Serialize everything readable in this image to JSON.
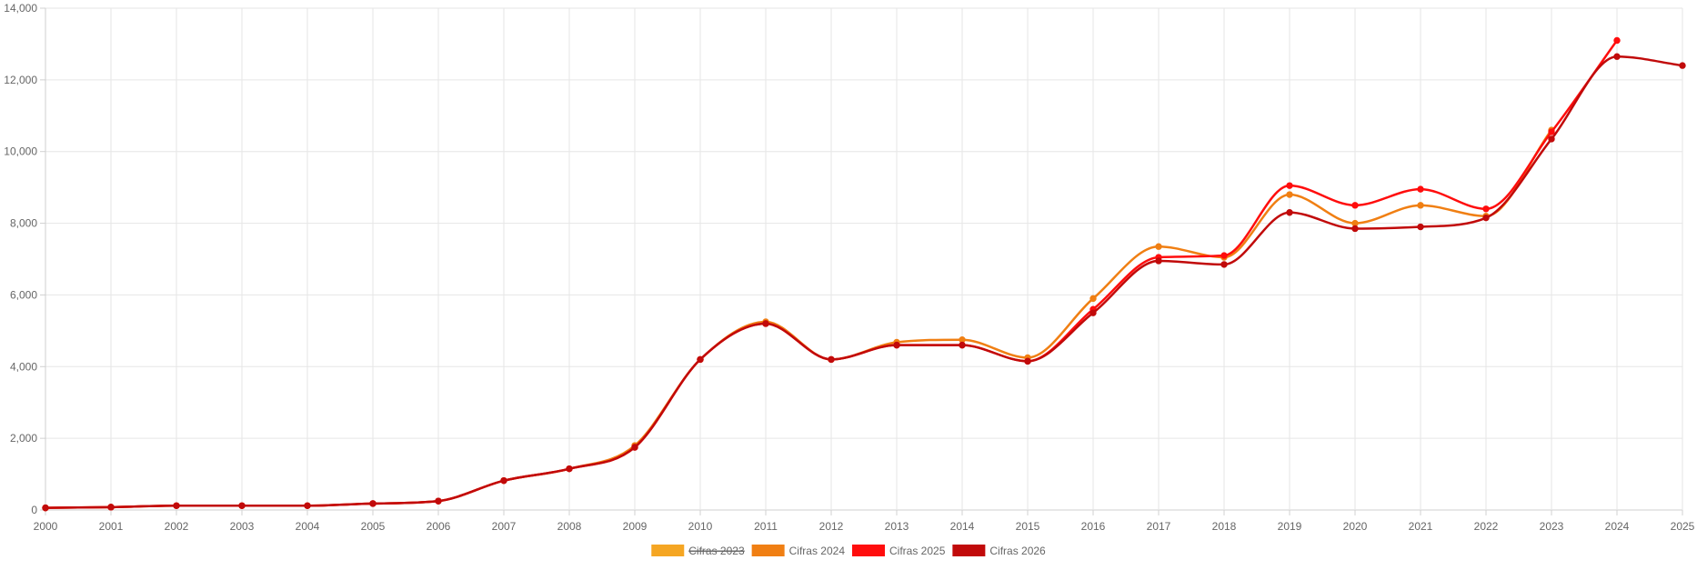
{
  "chart_data": {
    "type": "line",
    "title": "",
    "xlabel": "",
    "ylabel": "",
    "ylim": [
      0,
      14000
    ],
    "grid": true,
    "legend_position": "bottom-center",
    "y_ticks": [
      "0",
      "2,000",
      "4,000",
      "6,000",
      "8,000",
      "10,000",
      "12,000",
      "14,000"
    ],
    "y_tick_values": [
      0,
      2000,
      4000,
      6000,
      8000,
      10000,
      12000,
      14000
    ],
    "categories": [
      "2000",
      "2001",
      "2002",
      "2003",
      "2004",
      "2005",
      "2006",
      "2007",
      "2008",
      "2009",
      "2010",
      "2011",
      "2012",
      "2013",
      "2014",
      "2015",
      "2016",
      "2017",
      "2018",
      "2019",
      "2020",
      "2021",
      "2022",
      "2023",
      "2024",
      "2025"
    ],
    "series": [
      {
        "name": "Cifras 2023",
        "color": "#f5a623",
        "hidden": true,
        "values": [
          60,
          80,
          120,
          120,
          120,
          180,
          250,
          820,
          1150,
          1800,
          4200,
          5250,
          4200,
          4680,
          4750,
          4250,
          5900,
          7350,
          7050,
          8800,
          8000,
          8500,
          8200,
          10600,
          null,
          null
        ]
      },
      {
        "name": "Cifras 2024",
        "color": "#f07f13",
        "hidden": false,
        "values": [
          60,
          80,
          120,
          120,
          120,
          180,
          250,
          820,
          1150,
          1800,
          4200,
          5250,
          4200,
          4680,
          4750,
          4250,
          5900,
          7350,
          7050,
          8800,
          8000,
          8500,
          8200,
          10600,
          null,
          null
        ]
      },
      {
        "name": "Cifras 2025",
        "color": "#ff0d0d",
        "hidden": false,
        "values": [
          60,
          80,
          120,
          120,
          120,
          180,
          250,
          820,
          1150,
          1750,
          4200,
          5200,
          4200,
          4600,
          4600,
          4150,
          5600,
          7050,
          7100,
          9050,
          8500,
          8950,
          8400,
          10550,
          13100,
          null
        ]
      },
      {
        "name": "Cifras 2026",
        "color": "#c10a0a",
        "hidden": false,
        "values": [
          60,
          80,
          120,
          120,
          120,
          180,
          250,
          820,
          1150,
          1750,
          4200,
          5200,
          4200,
          4600,
          4600,
          4150,
          5500,
          6950,
          6850,
          8300,
          7850,
          7900,
          8150,
          10350,
          12650,
          12400
        ]
      }
    ]
  }
}
